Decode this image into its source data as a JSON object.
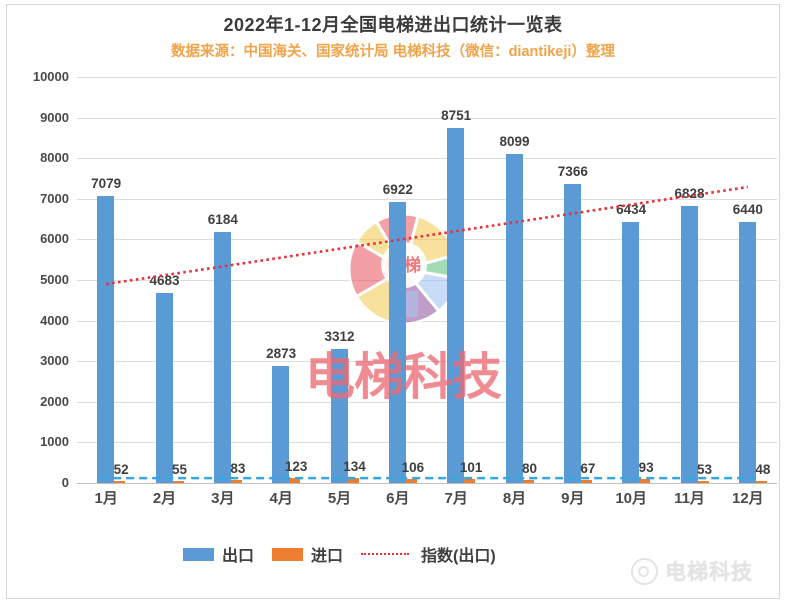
{
  "header": {
    "title": "2022年1-12月全国电梯进出口统计一览表",
    "subtitle": "数据来源：中国海关、国家统计局 电梯科技（微信：diantikeji）整理"
  },
  "colors": {
    "export_bar": "#5b9bd5",
    "import_bar": "#ed7d31",
    "trend_line": "#e8303a",
    "aux_dashed_line": "#35a7dc",
    "gridline": "#dcdcdc",
    "subtitle_text": "#f0a44a",
    "watermark_pink": "#ec6a74"
  },
  "chart_data": {
    "type": "bar",
    "title": "2022年1-12月全国电梯进出口统计一览表",
    "subtitle": "数据来源：中国海关、国家统计局 电梯科技（微信：diantikeji）整理",
    "categories": [
      "1月",
      "2月",
      "3月",
      "4月",
      "5月",
      "6月",
      "7月",
      "8月",
      "9月",
      "10月",
      "11月",
      "12月"
    ],
    "series": [
      {
        "name": "出口",
        "values": [
          7079,
          4683,
          6184,
          2873,
          3312,
          6922,
          8751,
          8099,
          7366,
          6434,
          6828,
          6440
        ]
      },
      {
        "name": "进口",
        "values": [
          52,
          55,
          83,
          123,
          134,
          106,
          101,
          80,
          67,
          93,
          53,
          48
        ]
      }
    ],
    "trendline": {
      "name": "指数(出口)",
      "style": "dotted-red",
      "start": 4900,
      "end": 7290
    },
    "aux_dashed_line": {
      "style": "dashed-blue",
      "start": 120,
      "end": 120
    },
    "ylim": [
      0,
      10000
    ],
    "yticks": [
      0,
      1000,
      2000,
      3000,
      4000,
      5000,
      6000,
      7000,
      8000,
      9000,
      10000
    ],
    "legend_position": "bottom",
    "legend_items": [
      {
        "label": "出口"
      },
      {
        "label": "进口"
      },
      {
        "label": "指数(出口)"
      }
    ]
  },
  "watermark": {
    "logo_text": "电梯",
    "text": "电梯科技"
  },
  "footer_logo": {
    "text": "电梯科技"
  }
}
